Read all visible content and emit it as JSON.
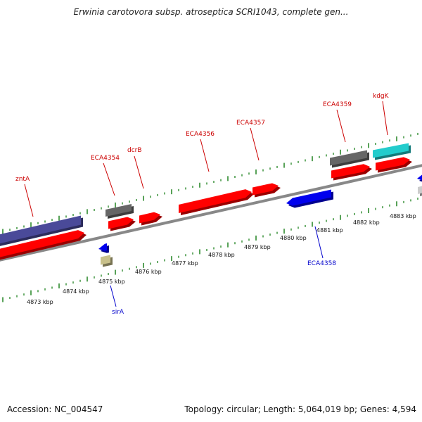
{
  "title": "Erwinia carotovora subsp. atroseptica SCRI1043, complete gen...",
  "footer": {
    "accession": "Accession: NC_004547",
    "summary": "Topology: circular; Length: 5,064,019 bp; Genes: 4,594"
  },
  "scale_labels": [
    "4873 kbp",
    "4874 kbp",
    "4875 kbp",
    "4876 kbp",
    "4877 kbp",
    "4878 kbp",
    "4879 kbp",
    "4880 kbp",
    "4881 kbp",
    "4882 kbp",
    "4883 kbp"
  ],
  "gene_labels_forward": [
    "zntA",
    "ECA4354",
    "dcrB",
    "ECA4356",
    "ECA4357",
    "ECA4359",
    "kdgK"
  ],
  "gene_labels_reverse": [
    "sirA",
    "ECA4358"
  ],
  "colors": {
    "forward_label": "#cc0000",
    "reverse_label": "#0000cc",
    "backbone": "#888888",
    "tick": "#2e8b2e",
    "cds_red": "#ff0000",
    "cds_blue": "#0000ee",
    "cds_gray": "#666666",
    "cds_cyan": "#22cccc",
    "cds_purple": "#4a4a99",
    "cds_khaki": "#c8c08a"
  }
}
